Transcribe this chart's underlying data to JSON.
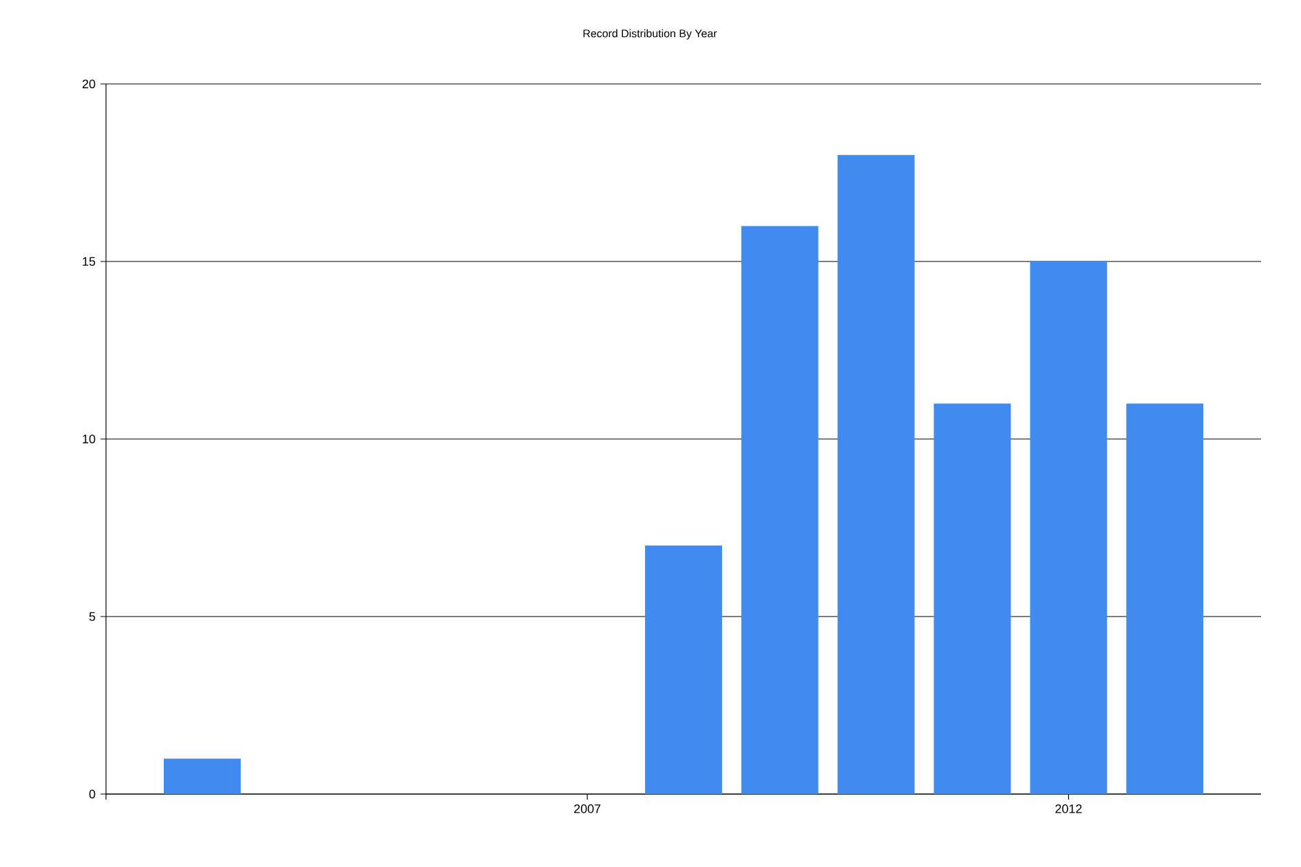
{
  "chart_data": {
    "type": "bar",
    "title": "Record Distribution By Year",
    "x": [
      2003,
      2008,
      2009,
      2010,
      2011,
      2012,
      2013
    ],
    "values": [
      1,
      7,
      16,
      18,
      11,
      15,
      11
    ],
    "color": "#418af0",
    "xlim": [
      2002,
      2014
    ],
    "xticks": [
      {
        "value": 2002,
        "label": null
      },
      2007,
      2012
    ],
    "ylim": [
      0,
      20
    ],
    "yticks": [
      0,
      5,
      10,
      15,
      20
    ],
    "grid": "y"
  }
}
